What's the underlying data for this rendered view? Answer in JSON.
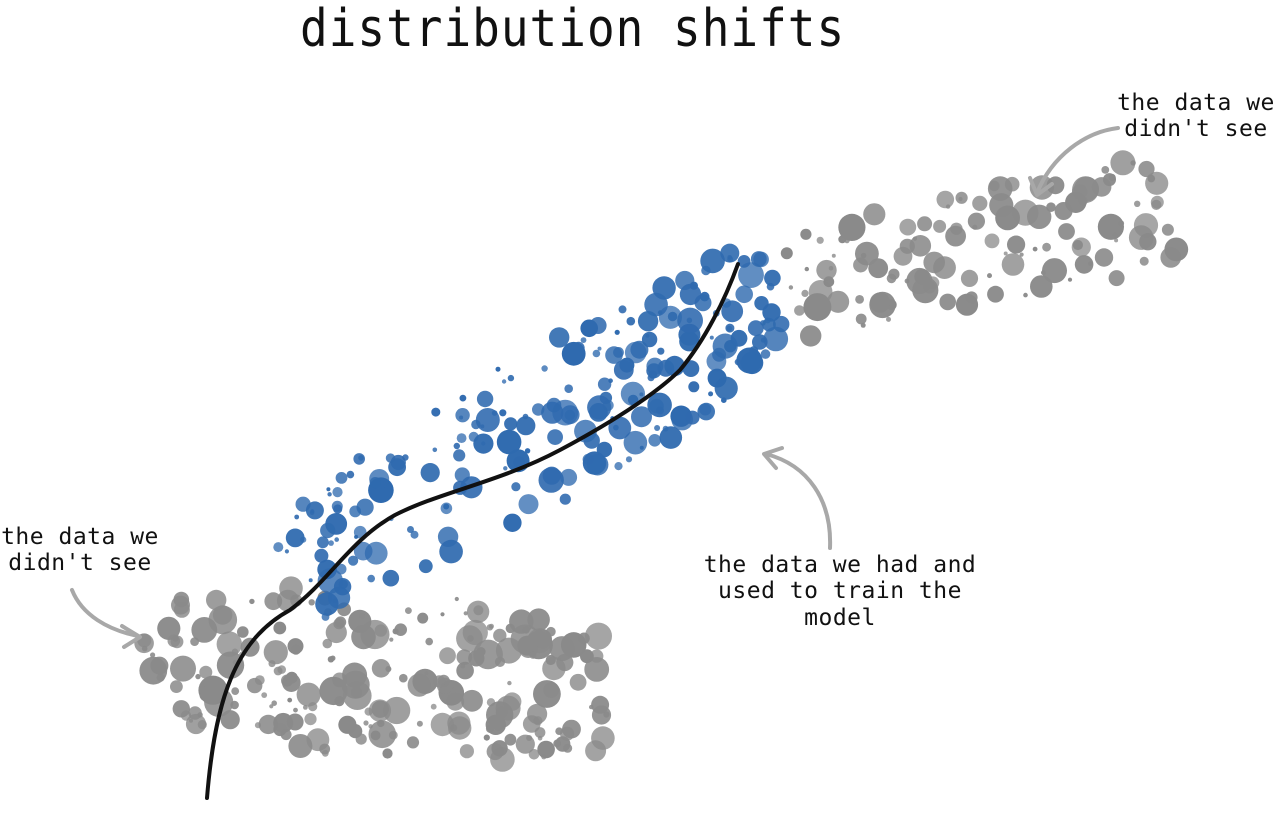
{
  "title": "distribution shifts",
  "annotations": {
    "unseen_top_right": [
      "the data we",
      "didn't see"
    ],
    "unseen_bottom_left": [
      "the data we",
      "didn't see"
    ],
    "training_data": [
      "the data we had and",
      "used to train the",
      "model"
    ]
  },
  "colors": {
    "training_points": "#2f6aaf",
    "unseen_points": "#8a8a8a",
    "model_curve": "#111111",
    "arrows": "#a8a8a8"
  },
  "clusters": [
    {
      "id": "training",
      "label": "the data we had and used to train the model",
      "color": "#2f6aaf"
    },
    {
      "id": "unseen-upper-right",
      "label": "the data we didn't see",
      "color": "#8a8a8a"
    },
    {
      "id": "unseen-lower-left",
      "label": "the data we didn't see",
      "color": "#8a8a8a"
    }
  ]
}
